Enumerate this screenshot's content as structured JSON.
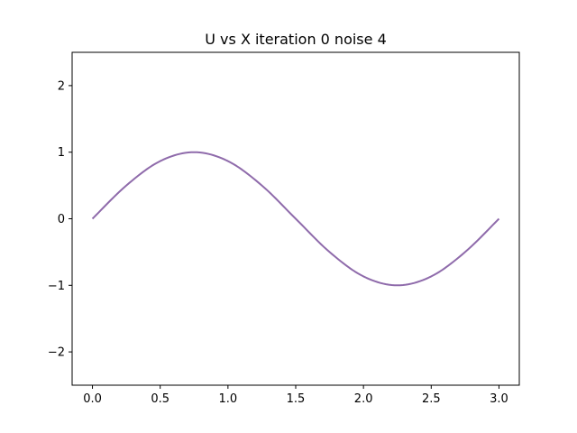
{
  "chart_data": {
    "type": "line",
    "title": "U vs X iteration 0 noise 4",
    "xlabel": "",
    "ylabel": "",
    "xlim": [
      -0.15,
      3.15
    ],
    "ylim": [
      -2.5,
      2.5
    ],
    "xticks": [
      0.0,
      0.5,
      1.0,
      1.5,
      2.0,
      2.5,
      3.0
    ],
    "xtick_labels": [
      "0.0",
      "0.5",
      "1.0",
      "1.5",
      "2.0",
      "2.5",
      "3.0"
    ],
    "yticks": [
      -2,
      -1,
      0,
      1,
      2
    ],
    "ytick_labels": [
      "−2",
      "−1",
      "0",
      "1",
      "2"
    ],
    "grid": false,
    "series": [
      {
        "color": "#8f6bab",
        "x": [
          0.0,
          0.25,
          0.5,
          0.75,
          1.0,
          1.25,
          1.5,
          1.75,
          2.0,
          2.25,
          2.5,
          2.75,
          3.0
        ],
        "y": [
          0.0,
          0.5,
          0.866,
          1.0,
          0.866,
          0.5,
          0.0,
          -0.5,
          -0.866,
          -1.0,
          -0.866,
          -0.5,
          0.0
        ]
      }
    ]
  }
}
